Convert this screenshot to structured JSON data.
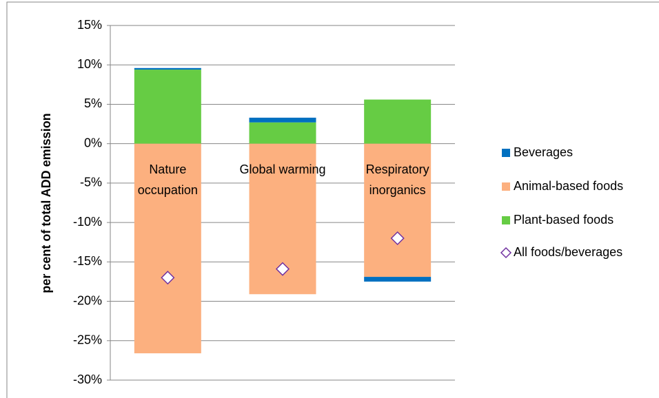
{
  "chart_data": {
    "type": "stacked-bar",
    "y_label": "per cent of total ADD emission",
    "categories": [
      "Nature occupation",
      "Global warming",
      "Respiratory inorganics"
    ],
    "series": [
      {
        "name": "Beverages",
        "color": "#0070c0",
        "values": [
          0.2,
          0.6,
          -0.6
        ]
      },
      {
        "name": "Animal-based foods",
        "color": "#fcb07f",
        "values": [
          -26.6,
          -19.1,
          -16.9
        ]
      },
      {
        "name": "Plant-based foods",
        "color": "#66cc44",
        "values": [
          9.4,
          2.7,
          5.6
        ]
      }
    ],
    "markers": {
      "name": "All foods/beverages",
      "color": "#7030a0",
      "values": [
        -17,
        -15.9,
        -12
      ]
    },
    "ylim": [
      -30,
      15
    ],
    "yticks": [
      {
        "value": -30,
        "label": "-30%"
      },
      {
        "value": -25,
        "label": "-25%"
      },
      {
        "value": -20,
        "label": "-20%"
      },
      {
        "value": -15,
        "label": "-15%"
      },
      {
        "value": -10,
        "label": "-10%"
      },
      {
        "value": -5,
        "label": "-5%"
      },
      {
        "value": 0,
        "label": "0%"
      },
      {
        "value": 5,
        "label": "5%"
      },
      {
        "value": 10,
        "label": "10%"
      },
      {
        "value": 15,
        "label": "15%"
      }
    ],
    "grid": true,
    "legend": "right"
  }
}
